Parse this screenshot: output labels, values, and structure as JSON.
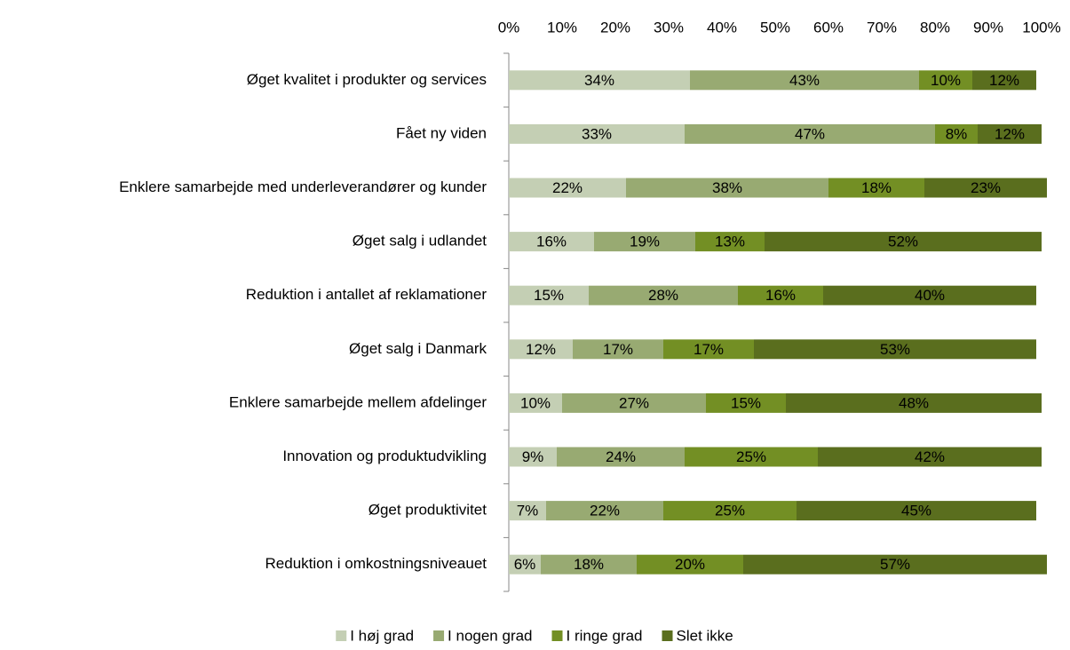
{
  "chart_data": {
    "type": "stacked-bar-horizontal",
    "categories": [
      "Øget kvalitet i produkter og services",
      "Fået ny viden",
      "Enklere samarbejde med underleverandører og kunder",
      "Øget salg i udlandet",
      "Reduktion i antallet af reklamationer",
      "Øget salg i Danmark",
      "Enklere samarbejde mellem afdelinger",
      "Innovation og produktudvikling",
      "Øget produktivitet",
      "Reduktion i omkostningsniveauet"
    ],
    "series": [
      {
        "name": "I høj grad",
        "color": "#c4cfb4",
        "values": [
          34,
          33,
          22,
          16,
          15,
          12,
          10,
          9,
          7,
          6
        ],
        "value_labels": [
          "34%",
          "33%",
          "22%",
          "16%",
          "15%",
          "12%",
          "10%",
          "9%",
          "7%",
          "6%"
        ]
      },
      {
        "name": "I nogen grad",
        "color": "#98aa72",
        "values": [
          43,
          47,
          38,
          19,
          28,
          17,
          27,
          24,
          22,
          18
        ],
        "value_labels": [
          "43%",
          "47%",
          "38%",
          "19%",
          "28%",
          "17%",
          "27%",
          "24%",
          "22%",
          "18%"
        ]
      },
      {
        "name": "I ringe grad",
        "color": "#738f24",
        "values": [
          10,
          8,
          18,
          13,
          16,
          17,
          15,
          25,
          25,
          20
        ],
        "value_labels": [
          "10%",
          "8%",
          "18%",
          "13%",
          "16%",
          "17%",
          "15%",
          "25%",
          "25%",
          "20%"
        ]
      },
      {
        "name": "Slet ikke",
        "color": "#5a6e1e",
        "values": [
          12,
          12,
          23,
          52,
          40,
          53,
          48,
          42,
          45,
          57
        ],
        "value_labels": [
          "12%",
          "12%",
          "23%",
          "52%",
          "40%",
          "53%",
          "48%",
          "42%",
          "45%",
          "57%"
        ]
      }
    ],
    "xlim": [
      0,
      100
    ],
    "xticks": [
      {
        "value": 0,
        "label": "0%"
      },
      {
        "value": 10,
        "label": "10%"
      },
      {
        "value": 20,
        "label": "20%"
      },
      {
        "value": 30,
        "label": "30%"
      },
      {
        "value": 40,
        "label": "40%"
      },
      {
        "value": 50,
        "label": "50%"
      },
      {
        "value": 60,
        "label": "60%"
      },
      {
        "value": 70,
        "label": "70%"
      },
      {
        "value": 80,
        "label": "80%"
      },
      {
        "value": 90,
        "label": "90%"
      },
      {
        "value": 100,
        "label": "100%"
      }
    ],
    "legend": "bottom"
  }
}
